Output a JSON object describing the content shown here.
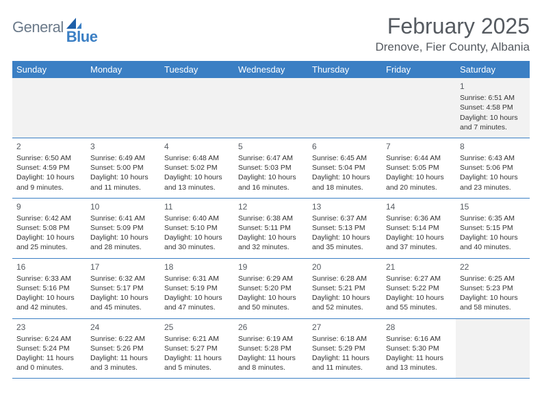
{
  "brand": {
    "part1": "General",
    "part2": "Blue"
  },
  "title": "February 2025",
  "location": "Drenove, Fier County, Albania",
  "colors": {
    "header_bg": "#3b7fc4",
    "header_text": "#ffffff",
    "border": "#3b7fc4",
    "blank_bg": "#f2f2f2",
    "title_color": "#555a60",
    "body_text": "#333333",
    "logo_gray": "#6b7a8a",
    "logo_blue": "#3b7fc4"
  },
  "day_names": [
    "Sunday",
    "Monday",
    "Tuesday",
    "Wednesday",
    "Thursday",
    "Friday",
    "Saturday"
  ],
  "weeks": [
    [
      null,
      null,
      null,
      null,
      null,
      null,
      {
        "n": "1",
        "sr": "6:51 AM",
        "ss": "4:58 PM",
        "dl": "10 hours and 7 minutes."
      }
    ],
    [
      {
        "n": "2",
        "sr": "6:50 AM",
        "ss": "4:59 PM",
        "dl": "10 hours and 9 minutes."
      },
      {
        "n": "3",
        "sr": "6:49 AM",
        "ss": "5:00 PM",
        "dl": "10 hours and 11 minutes."
      },
      {
        "n": "4",
        "sr": "6:48 AM",
        "ss": "5:02 PM",
        "dl": "10 hours and 13 minutes."
      },
      {
        "n": "5",
        "sr": "6:47 AM",
        "ss": "5:03 PM",
        "dl": "10 hours and 16 minutes."
      },
      {
        "n": "6",
        "sr": "6:45 AM",
        "ss": "5:04 PM",
        "dl": "10 hours and 18 minutes."
      },
      {
        "n": "7",
        "sr": "6:44 AM",
        "ss": "5:05 PM",
        "dl": "10 hours and 20 minutes."
      },
      {
        "n": "8",
        "sr": "6:43 AM",
        "ss": "5:06 PM",
        "dl": "10 hours and 23 minutes."
      }
    ],
    [
      {
        "n": "9",
        "sr": "6:42 AM",
        "ss": "5:08 PM",
        "dl": "10 hours and 25 minutes."
      },
      {
        "n": "10",
        "sr": "6:41 AM",
        "ss": "5:09 PM",
        "dl": "10 hours and 28 minutes."
      },
      {
        "n": "11",
        "sr": "6:40 AM",
        "ss": "5:10 PM",
        "dl": "10 hours and 30 minutes."
      },
      {
        "n": "12",
        "sr": "6:38 AM",
        "ss": "5:11 PM",
        "dl": "10 hours and 32 minutes."
      },
      {
        "n": "13",
        "sr": "6:37 AM",
        "ss": "5:13 PM",
        "dl": "10 hours and 35 minutes."
      },
      {
        "n": "14",
        "sr": "6:36 AM",
        "ss": "5:14 PM",
        "dl": "10 hours and 37 minutes."
      },
      {
        "n": "15",
        "sr": "6:35 AM",
        "ss": "5:15 PM",
        "dl": "10 hours and 40 minutes."
      }
    ],
    [
      {
        "n": "16",
        "sr": "6:33 AM",
        "ss": "5:16 PM",
        "dl": "10 hours and 42 minutes."
      },
      {
        "n": "17",
        "sr": "6:32 AM",
        "ss": "5:17 PM",
        "dl": "10 hours and 45 minutes."
      },
      {
        "n": "18",
        "sr": "6:31 AM",
        "ss": "5:19 PM",
        "dl": "10 hours and 47 minutes."
      },
      {
        "n": "19",
        "sr": "6:29 AM",
        "ss": "5:20 PM",
        "dl": "10 hours and 50 minutes."
      },
      {
        "n": "20",
        "sr": "6:28 AM",
        "ss": "5:21 PM",
        "dl": "10 hours and 52 minutes."
      },
      {
        "n": "21",
        "sr": "6:27 AM",
        "ss": "5:22 PM",
        "dl": "10 hours and 55 minutes."
      },
      {
        "n": "22",
        "sr": "6:25 AM",
        "ss": "5:23 PM",
        "dl": "10 hours and 58 minutes."
      }
    ],
    [
      {
        "n": "23",
        "sr": "6:24 AM",
        "ss": "5:24 PM",
        "dl": "11 hours and 0 minutes."
      },
      {
        "n": "24",
        "sr": "6:22 AM",
        "ss": "5:26 PM",
        "dl": "11 hours and 3 minutes."
      },
      {
        "n": "25",
        "sr": "6:21 AM",
        "ss": "5:27 PM",
        "dl": "11 hours and 5 minutes."
      },
      {
        "n": "26",
        "sr": "6:19 AM",
        "ss": "5:28 PM",
        "dl": "11 hours and 8 minutes."
      },
      {
        "n": "27",
        "sr": "6:18 AM",
        "ss": "5:29 PM",
        "dl": "11 hours and 11 minutes."
      },
      {
        "n": "28",
        "sr": "6:16 AM",
        "ss": "5:30 PM",
        "dl": "11 hours and 13 minutes."
      },
      null
    ]
  ],
  "labels": {
    "sunrise": "Sunrise: ",
    "sunset": "Sunset: ",
    "daylight": "Daylight: "
  }
}
